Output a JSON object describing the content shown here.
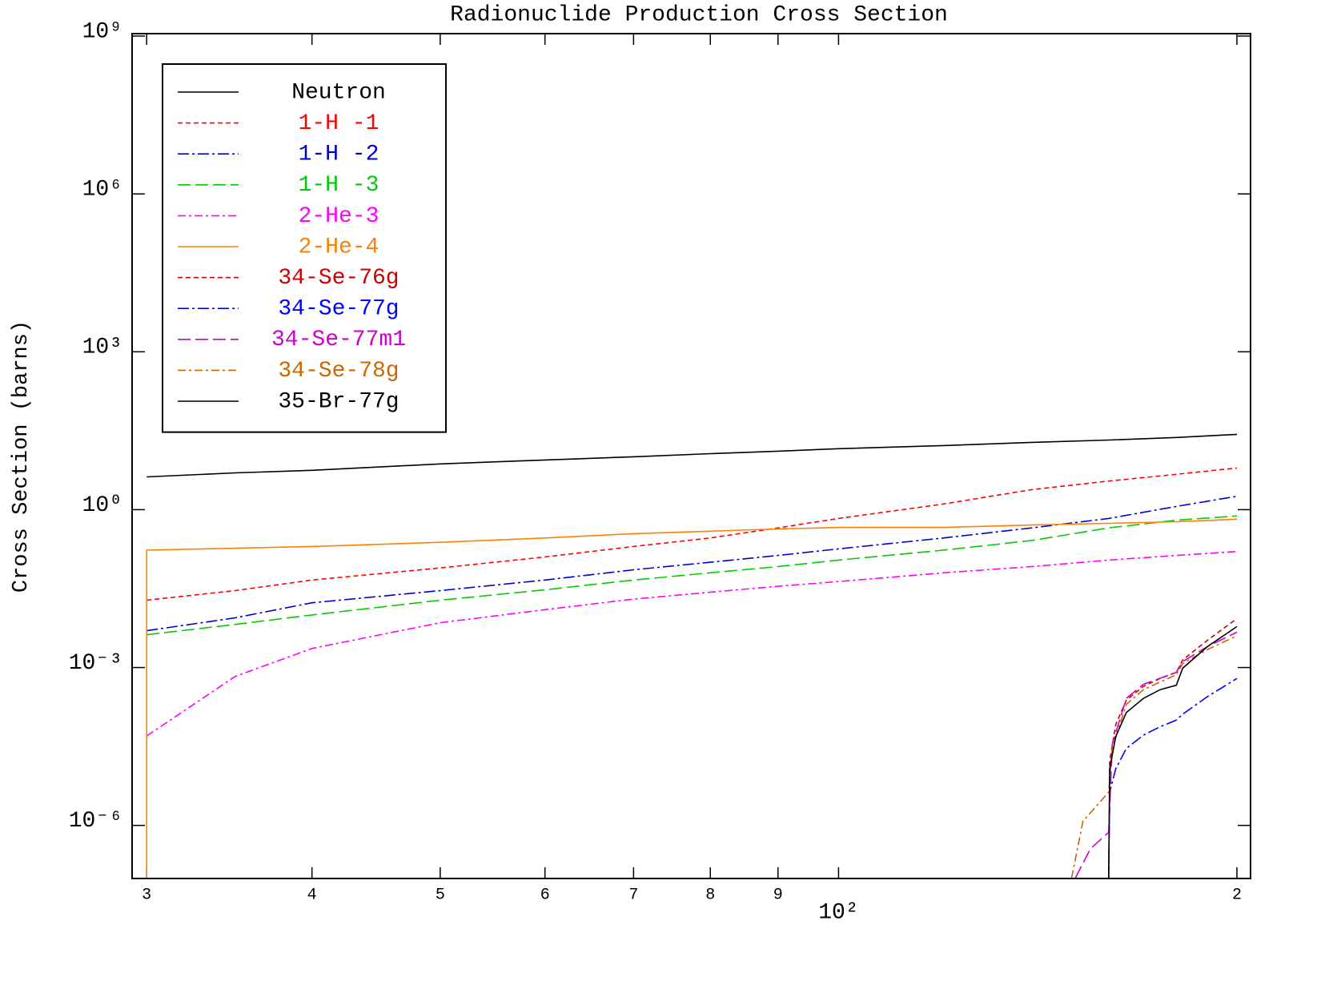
{
  "chart_data": {
    "type": "line",
    "title": "Radionuclide Production Cross Section",
    "ylabel": "Cross Section (barns)",
    "xscale": "log",
    "yscale": "log",
    "legend": "upper left",
    "xlim": [
      29.25,
      204.8
    ],
    "ylim": [
      9.8e-08,
      1000000000.0
    ],
    "xticks": [
      {
        "value": 30,
        "label": "3"
      },
      {
        "value": 40,
        "label": "4"
      },
      {
        "value": 50,
        "label": "5"
      },
      {
        "value": 60,
        "label": "6"
      },
      {
        "value": 70,
        "label": "7"
      },
      {
        "value": 80,
        "label": "8"
      },
      {
        "value": 90,
        "label": "9"
      },
      {
        "value": 100,
        "label": "10²"
      },
      {
        "value": 200,
        "label": "2"
      }
    ],
    "yticks": [
      {
        "value": 1e-06,
        "label": "10⁻⁶"
      },
      {
        "value": 0.001,
        "label": "10⁻³"
      },
      {
        "value": 1,
        "label": "10⁰"
      },
      {
        "value": 1000,
        "label": "10³"
      },
      {
        "value": 1000000,
        "label": "10⁶"
      },
      {
        "value": 1000000000,
        "label": "10⁹"
      }
    ],
    "series": [
      {
        "name": "Neutron",
        "color": "#000000",
        "dash": "none",
        "x": [
          30,
          35,
          40,
          50,
          60,
          70,
          80,
          90,
          100,
          120,
          140,
          160,
          180,
          200
        ],
        "values": [
          4.2,
          5.0,
          5.6,
          7.4,
          8.8,
          10.1,
          11.6,
          12.9,
          14.4,
          16.5,
          19,
          21,
          23.5,
          27
        ]
      },
      {
        "name": "1-H -1",
        "color": "#ff0000",
        "dash": "6,4",
        "x": [
          30,
          35,
          40,
          50,
          60,
          70,
          80,
          90,
          100,
          120,
          140,
          160,
          180,
          200
        ],
        "values": [
          0.019,
          0.029,
          0.046,
          0.078,
          0.126,
          0.2,
          0.29,
          0.45,
          0.68,
          1.28,
          2.4,
          3.5,
          4.7,
          6.2
        ]
      },
      {
        "name": "1-H -2",
        "color": "#0000cc",
        "dash": "14,4,3,4",
        "x": [
          30,
          35,
          40,
          50,
          60,
          70,
          80,
          90,
          100,
          120,
          140,
          160,
          180,
          200
        ],
        "values": [
          0.005,
          0.0088,
          0.017,
          0.029,
          0.046,
          0.072,
          0.1,
          0.135,
          0.18,
          0.29,
          0.45,
          0.68,
          1.15,
          1.8
        ]
      },
      {
        "name": "1-H -3",
        "color": "#00cc00",
        "dash": "16,6",
        "x": [
          30,
          35,
          40,
          50,
          60,
          70,
          80,
          90,
          100,
          120,
          140,
          160,
          180,
          200
        ],
        "values": [
          0.0042,
          0.0066,
          0.01,
          0.019,
          0.03,
          0.046,
          0.063,
          0.083,
          0.11,
          0.17,
          0.26,
          0.45,
          0.63,
          0.76
        ]
      },
      {
        "name": "2-He-3",
        "color": "#ff00ff",
        "dash": "10,4,3,4",
        "x": [
          30,
          35,
          40,
          50,
          60,
          70,
          80,
          90,
          100,
          120,
          140,
          160,
          180,
          200
        ],
        "values": [
          5e-05,
          0.00068,
          0.0023,
          0.0071,
          0.0126,
          0.02,
          0.027,
          0.035,
          0.043,
          0.063,
          0.083,
          0.11,
          0.135,
          0.16
        ]
      },
      {
        "name": "2-He-4",
        "color": "#ff8000",
        "dash": "none",
        "x": [
          30,
          30,
          35,
          40,
          50,
          60,
          70,
          80,
          90,
          100,
          120,
          140,
          160,
          180,
          200
        ],
        "values": [
          1e-07,
          0.17,
          0.185,
          0.2,
          0.24,
          0.29,
          0.35,
          0.39,
          0.43,
          0.46,
          0.46,
          0.51,
          0.55,
          0.59,
          0.66
        ]
      },
      {
        "name": "34-Se-76g",
        "color": "#cc0000",
        "dash": "6,4",
        "x": [
          160,
          160.3,
          162,
          165,
          170,
          175,
          180,
          182,
          190,
          200
        ],
        "values": [
          1e-07,
          1.7e-05,
          8.3e-05,
          0.00024,
          0.00044,
          0.00062,
          0.00081,
          0.0014,
          0.0033,
          0.0085
        ]
      },
      {
        "name": "34-Se-77g",
        "color": "#0000ff",
        "dash": "14,4,3,4",
        "x": [
          160,
          160.3,
          162,
          165,
          170,
          175,
          180,
          182,
          190,
          200
        ],
        "values": [
          1e-07,
          4.3e-06,
          1.2e-05,
          2.9e-05,
          5.2e-05,
          7.5e-05,
          0.0001,
          0.00013,
          0.00028,
          0.00062
        ]
      },
      {
        "name": "34-Se-77m1",
        "color": "#cc00cc",
        "dash": "16,6",
        "x": [
          151,
          155,
          160,
          161,
          165,
          170,
          180,
          182,
          190,
          200
        ],
        "values": [
          1e-07,
          3.6e-07,
          7.4e-07,
          3.5e-05,
          0.00026,
          0.00048,
          0.00081,
          0.0013,
          0.0025,
          0.0047
        ]
      },
      {
        "name": "34-Se-78g",
        "color": "#cc6600",
        "dash": "10,4,3,4",
        "x": [
          150,
          153,
          157,
          160,
          161,
          165,
          170,
          180,
          182,
          190,
          200
        ],
        "values": [
          1e-07,
          1.2e-06,
          2.5e-06,
          4.3e-06,
          2.9e-05,
          0.0002,
          0.00038,
          0.00073,
          0.0012,
          0.0022,
          0.004
        ]
      },
      {
        "name": "35-Br-77g",
        "color": "#000000",
        "dash": "none",
        "x": [
          160,
          160.3,
          162,
          165,
          170,
          175,
          180,
          182,
          190,
          200
        ],
        "values": [
          1e-07,
          1.2e-05,
          4.9e-05,
          0.00014,
          0.00026,
          0.00038,
          0.00046,
          0.00097,
          0.0025,
          0.006
        ]
      }
    ]
  }
}
